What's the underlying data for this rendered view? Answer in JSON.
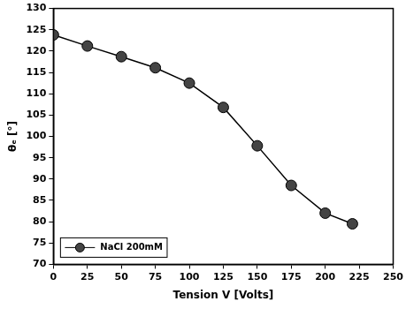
{
  "chart_data": {
    "type": "line",
    "x_label": "Tension V [Volts]",
    "y_label": "θₑ [°]",
    "x": [
      0,
      25,
      50,
      75,
      100,
      125,
      150,
      175,
      200,
      220
    ],
    "series": [
      {
        "name": "NaCl 200mM",
        "color": "#444444",
        "marker": "circle",
        "line_style": "solid",
        "values": [
          123.8,
          121.2,
          118.7,
          116.1,
          112.5,
          106.8,
          97.8,
          88.5,
          82.0,
          79.5
        ]
      }
    ],
    "xlim": [
      0,
      250
    ],
    "xticks": [
      0,
      25,
      50,
      75,
      100,
      125,
      150,
      175,
      200,
      225,
      250
    ],
    "ylim": [
      70,
      130
    ],
    "yticks": [
      70,
      75,
      80,
      85,
      90,
      95,
      100,
      105,
      110,
      115,
      120,
      125,
      130
    ],
    "grid": false,
    "legend": "lower left"
  }
}
